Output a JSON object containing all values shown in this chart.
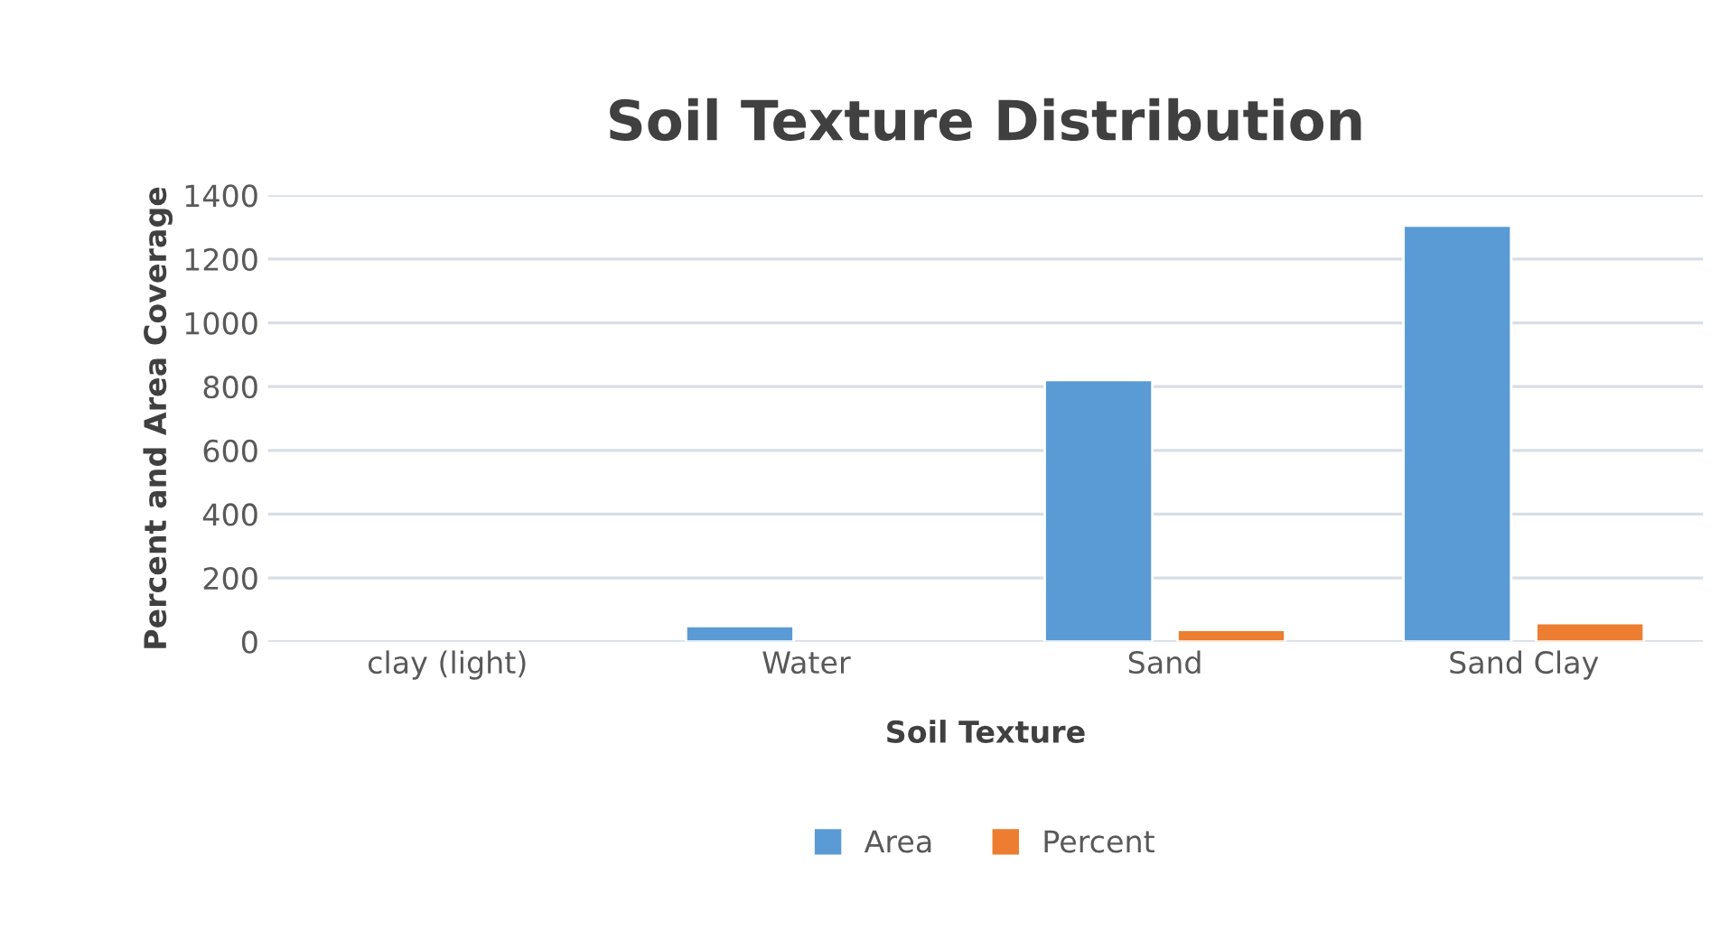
{
  "chart_data": {
    "type": "bar",
    "title": "Soil Texture Distribution",
    "xlabel": "Soil Texture",
    "ylabel": "Percent and Area Coverage",
    "categories": [
      "clay (light)",
      "Water",
      "Sand",
      "Sand Clay"
    ],
    "series": [
      {
        "name": "Area",
        "color": "#5b9bd5",
        "values": [
          null,
          49,
          821,
          1305
        ]
      },
      {
        "name": "Percent",
        "color": "#ed7d31",
        "values": [
          null,
          null,
          37,
          58
        ]
      }
    ],
    "ylim": [
      0,
      1400
    ],
    "yticks": [
      0,
      200,
      400,
      600,
      800,
      1000,
      1200,
      1400
    ],
    "grid": "y",
    "legend": "bottom"
  }
}
